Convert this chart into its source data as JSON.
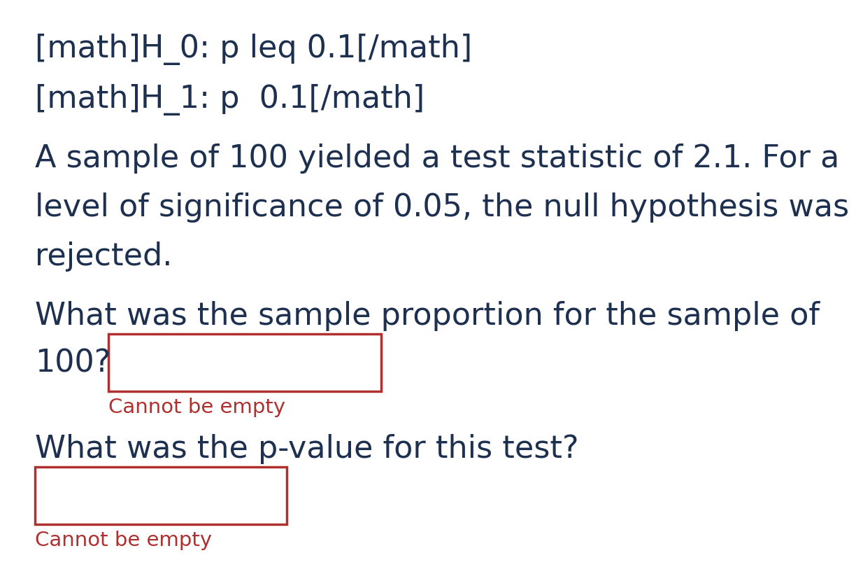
{
  "bg_color": "#ffffff",
  "text_color": "#1e3050",
  "red_color": "#b03030",
  "line1": "[math]H_0: p leq 0.1[/math]",
  "line2": "[math]H_1: p  0.1[/math]",
  "para_line1": "A sample of 100 yielded a test statistic of 2.1. For a",
  "para_line2": "level of significance of 0.05, the null hypothesis was",
  "para_line3": "rejected.",
  "q1_line1": "What was the sample proportion for the sample of",
  "q1_line2": "100?",
  "cannot_be_empty": "Cannot be empty",
  "q2": "What was the p-value for this test?",
  "font_size_main": 32,
  "font_size_small": 21
}
